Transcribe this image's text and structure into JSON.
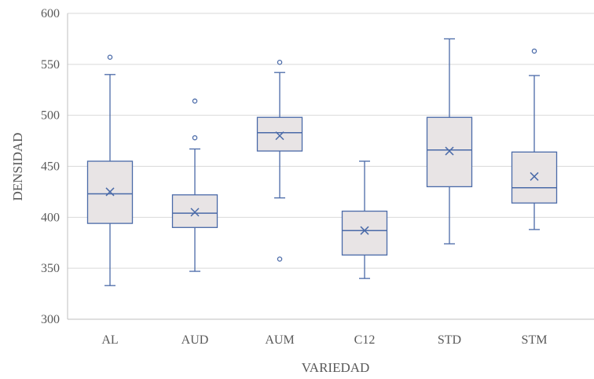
{
  "chart_data": {
    "type": "box",
    "title": "",
    "xlabel": "VARIEDAD",
    "ylabel": "DENSIDAD",
    "ylim": [
      300,
      600
    ],
    "yticks": [
      300,
      350,
      400,
      450,
      500,
      550,
      600
    ],
    "grid": true,
    "legend": "none",
    "categories": [
      "AL",
      "AUD",
      "AUM",
      "C12",
      "STD",
      "STM"
    ],
    "boxes": [
      {
        "category": "AL",
        "min": 333,
        "q1": 394,
        "median": 423,
        "q3": 455,
        "max": 540,
        "mean": 425,
        "outliers": [
          557
        ]
      },
      {
        "category": "AUD",
        "min": 347,
        "q1": 390,
        "median": 404,
        "q3": 422,
        "max": 467,
        "mean": 405,
        "outliers": [
          478,
          514
        ]
      },
      {
        "category": "AUM",
        "min": 419,
        "q1": 465,
        "median": 483,
        "q3": 498,
        "max": 542,
        "mean": 480,
        "outliers": [
          359,
          552
        ]
      },
      {
        "category": "C12",
        "min": 340,
        "q1": 363,
        "median": 387,
        "q3": 406,
        "max": 455,
        "mean": 387,
        "outliers": []
      },
      {
        "category": "STD",
        "min": 374,
        "q1": 430,
        "median": 466,
        "q3": 498,
        "max": 575,
        "mean": 465,
        "outliers": []
      },
      {
        "category": "STM",
        "min": 388,
        "q1": 414,
        "median": 429,
        "q3": 464,
        "max": 539,
        "mean": 440,
        "outliers": [
          563
        ]
      }
    ],
    "colors": {
      "box_fill": "#e8e4e5",
      "box_stroke": "#4a6aa8",
      "grid": "#d9d9d9",
      "axis": "#bfbfbf",
      "text": "#595959"
    }
  }
}
